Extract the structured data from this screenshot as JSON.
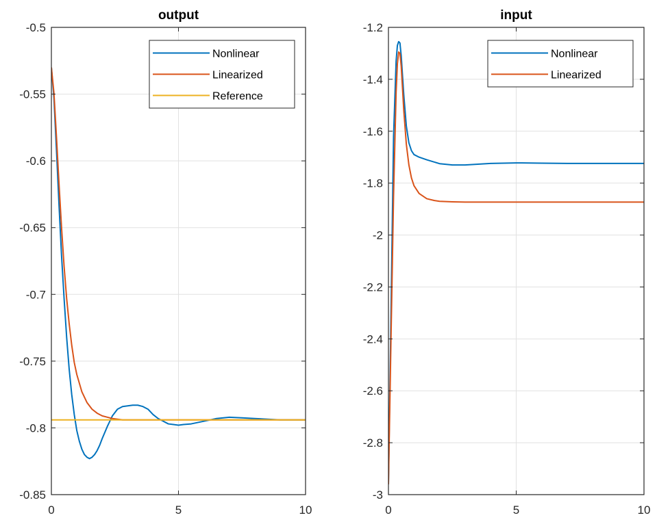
{
  "colors": {
    "blue": "#0072bd",
    "orange": "#d95319",
    "yellow": "#edb120",
    "grid": "#e1e1e1",
    "axis": "#262626"
  },
  "chart_data": [
    {
      "type": "line",
      "title": "output",
      "xlabel": "",
      "ylabel": "",
      "xlim": [
        0,
        10
      ],
      "ylim": [
        -0.85,
        -0.5
      ],
      "xticks": [
        0,
        5,
        10
      ],
      "xtick_labels": [
        "0",
        "5",
        "10"
      ],
      "yticks": [
        -0.85,
        -0.8,
        -0.75,
        -0.7,
        -0.65,
        -0.6,
        -0.55,
        -0.5
      ],
      "ytick_labels": [
        "-0.85",
        "-0.8",
        "-0.75",
        "-0.7",
        "-0.65",
        "-0.6",
        "-0.55",
        "-0.5"
      ],
      "grid": true,
      "legend": "top-right",
      "series": [
        {
          "name": "Nonlinear",
          "color": "#0072bd",
          "x": [
            0,
            0.1,
            0.2,
            0.3,
            0.4,
            0.5,
            0.6,
            0.7,
            0.8,
            0.9,
            1.0,
            1.1,
            1.2,
            1.3,
            1.4,
            1.5,
            1.6,
            1.7,
            1.8,
            1.9,
            2.0,
            2.2,
            2.4,
            2.6,
            2.8,
            3.0,
            3.2,
            3.4,
            3.6,
            3.8,
            4.0,
            4.2,
            4.4,
            4.6,
            4.8,
            5.0,
            5.2,
            5.5,
            6.0,
            6.5,
            7.0,
            7.5,
            8.0,
            8.5,
            9.0,
            9.5,
            10
          ],
          "y": [
            -0.53,
            -0.553,
            -0.592,
            -0.633,
            -0.671,
            -0.703,
            -0.732,
            -0.756,
            -0.775,
            -0.79,
            -0.802,
            -0.81,
            -0.816,
            -0.82,
            -0.822,
            -0.823,
            -0.822,
            -0.82,
            -0.817,
            -0.813,
            -0.808,
            -0.799,
            -0.791,
            -0.786,
            -0.784,
            -0.7835,
            -0.783,
            -0.783,
            -0.784,
            -0.786,
            -0.79,
            -0.793,
            -0.795,
            -0.797,
            -0.7975,
            -0.798,
            -0.7975,
            -0.797,
            -0.795,
            -0.793,
            -0.792,
            -0.7925,
            -0.793,
            -0.7935,
            -0.794,
            -0.794,
            -0.794
          ]
        },
        {
          "name": "Linearized",
          "color": "#d95319",
          "x": [
            0,
            0.1,
            0.2,
            0.3,
            0.4,
            0.5,
            0.6,
            0.7,
            0.8,
            0.9,
            1.0,
            1.2,
            1.4,
            1.6,
            1.8,
            2.0,
            2.2,
            2.4,
            2.6,
            2.8,
            3.0,
            3.5,
            4.0,
            5.0,
            6.0,
            8.0,
            10
          ],
          "y": [
            -0.53,
            -0.549,
            -0.582,
            -0.617,
            -0.65,
            -0.679,
            -0.703,
            -0.722,
            -0.738,
            -0.751,
            -0.76,
            -0.773,
            -0.781,
            -0.786,
            -0.789,
            -0.791,
            -0.792,
            -0.793,
            -0.7935,
            -0.794,
            -0.794,
            -0.794,
            -0.794,
            -0.794,
            -0.794,
            -0.794,
            -0.794
          ]
        },
        {
          "name": "Reference",
          "color": "#edb120",
          "x": [
            0,
            10
          ],
          "y": [
            -0.794,
            -0.794
          ]
        }
      ]
    },
    {
      "type": "line",
      "title": "input",
      "xlabel": "",
      "ylabel": "",
      "xlim": [
        0,
        10
      ],
      "ylim": [
        -3,
        -1.2
      ],
      "xticks": [
        0,
        5,
        10
      ],
      "xtick_labels": [
        "0",
        "5",
        "10"
      ],
      "yticks": [
        -3,
        -2.8,
        -2.6,
        -2.4,
        -2.2,
        -2,
        -1.8,
        -1.6,
        -1.4,
        -1.2
      ],
      "ytick_labels": [
        "-3",
        "-2.8",
        "-2.6",
        "-2.4",
        "-2.2",
        "-2",
        "-1.8",
        "-1.6",
        "-1.4",
        "-1.2"
      ],
      "grid": true,
      "legend": "top-right",
      "series": [
        {
          "name": "Nonlinear",
          "color": "#0072bd",
          "x": [
            0,
            0.1,
            0.2,
            0.3,
            0.35,
            0.4,
            0.45,
            0.5,
            0.6,
            0.7,
            0.8,
            0.9,
            1.0,
            1.2,
            1.5,
            2.0,
            2.5,
            3.0,
            3.5,
            4.0,
            5.0,
            6.0,
            7.0,
            8.0,
            9.0,
            10
          ],
          "y": [
            -2.96,
            -2.3,
            -1.62,
            -1.33,
            -1.27,
            -1.255,
            -1.26,
            -1.31,
            -1.46,
            -1.58,
            -1.645,
            -1.675,
            -1.69,
            -1.7,
            -1.71,
            -1.725,
            -1.73,
            -1.73,
            -1.727,
            -1.724,
            -1.722,
            -1.723,
            -1.724,
            -1.724,
            -1.724,
            -1.724
          ]
        },
        {
          "name": "Linearized",
          "color": "#d95319",
          "x": [
            0,
            0.1,
            0.2,
            0.3,
            0.35,
            0.4,
            0.45,
            0.5,
            0.6,
            0.7,
            0.8,
            0.9,
            1.0,
            1.2,
            1.5,
            1.8,
            2.0,
            2.5,
            3.0,
            4.0,
            6.0,
            8.0,
            10
          ],
          "y": [
            -2.96,
            -2.4,
            -1.85,
            -1.45,
            -1.34,
            -1.295,
            -1.3,
            -1.35,
            -1.52,
            -1.65,
            -1.73,
            -1.78,
            -1.81,
            -1.84,
            -1.86,
            -1.867,
            -1.87,
            -1.872,
            -1.873,
            -1.873,
            -1.873,
            -1.873,
            -1.873
          ]
        }
      ]
    }
  ]
}
